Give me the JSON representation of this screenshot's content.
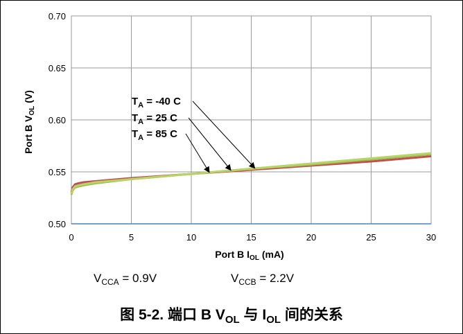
{
  "chart_data": {
    "type": "line",
    "xlabel": {
      "prefix": "Port B I",
      "sub": "OL",
      "suffix": " (mA)"
    },
    "ylabel": {
      "prefix": "Port B V",
      "sub": "OL",
      "suffix": " (V)"
    },
    "xlim": [
      0,
      30
    ],
    "ylim": [
      0.5,
      0.7
    ],
    "x_ticks": [
      "0",
      "5",
      "10",
      "15",
      "20",
      "25",
      "30"
    ],
    "y_ticks": [
      "0.50",
      "0.55",
      "0.60",
      "0.65",
      "0.70"
    ],
    "grid": true,
    "series": [
      {
        "name": "T_A = -40 C",
        "color": "#c0504d",
        "x": [
          0,
          0.1,
          0.3,
          0.6,
          1,
          2,
          5,
          10,
          15,
          20,
          25,
          30
        ],
        "y": [
          0.53,
          0.535,
          0.538,
          0.539,
          0.54,
          0.541,
          0.544,
          0.548,
          0.552,
          0.556,
          0.56,
          0.565
        ]
      },
      {
        "name": "T_A = 25 C",
        "color": "#9bbb59",
        "x": [
          0,
          0.1,
          0.3,
          0.6,
          1,
          2,
          5,
          10,
          15,
          20,
          25,
          30
        ],
        "y": [
          0.528,
          0.532,
          0.535,
          0.536,
          0.537,
          0.539,
          0.543,
          0.548,
          0.553,
          0.557,
          0.562,
          0.567
        ]
      },
      {
        "name": "T_A = 85 C",
        "color": "#b8d366",
        "x": [
          0,
          0.1,
          0.3,
          0.6,
          1,
          2,
          5,
          10,
          15,
          20,
          25,
          30
        ],
        "y": [
          0.529,
          0.533,
          0.536,
          0.537,
          0.538,
          0.54,
          0.543,
          0.548,
          0.553,
          0.558,
          0.563,
          0.568
        ]
      }
    ],
    "annotations": [
      {
        "label": "T_A = -40 C",
        "prefix": "T",
        "sub": "A",
        "suffix": " = -40 C",
        "arrow_to": [
          15.3,
          0.5535
        ]
      },
      {
        "label": "T_A = 25 C",
        "prefix": "T",
        "sub": "A",
        "suffix": " = 25 C",
        "arrow_to": [
          13.3,
          0.5515
        ]
      },
      {
        "label": "T_A = 85 C",
        "prefix": "T",
        "sub": "A",
        "suffix": " = 85 C",
        "arrow_to": [
          11.5,
          0.5495
        ]
      }
    ]
  },
  "conditions": {
    "vcca": {
      "prefix": "V",
      "sub": "CCA",
      "suffix": " = 0.9V"
    },
    "vccb": {
      "prefix": "V",
      "sub": "CCB",
      "suffix": " = 2.2V"
    }
  },
  "caption": {
    "part1": "图 5-2. 端口 B V",
    "sub1": "OL",
    "part2": " 与 I",
    "sub2": "OL",
    "part3": " 间的关系"
  }
}
